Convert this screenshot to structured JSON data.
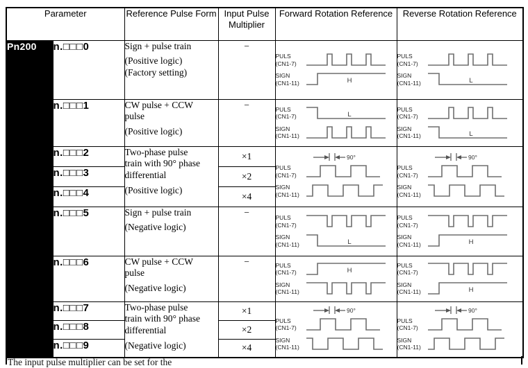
{
  "colors": {
    "border": "#000000",
    "param_bg": "#000000",
    "param_fg": "#ffffff",
    "waveform": "#6e6e6e",
    "level_label": "#333333",
    "annotation": "#555555"
  },
  "header": {
    "parameter": "Parameter",
    "form": "Reference Pulse Form",
    "multiplier": "Input Pulse Multiplier",
    "forward": "Forward Rotation Reference",
    "reverse": "Reverse Rotation Reference"
  },
  "parameter_group": "Pn200",
  "signals": {
    "puls": "PULS",
    "puls_pin": "(CN1-7)",
    "sign": "SIGN",
    "sign_pin": "(CN1-11)",
    "phase_label": "90°"
  },
  "rows": [
    {
      "code": "n.□□□0",
      "form_main": "Sign + pulse train",
      "form_notes": "(Positive logic)\n(Factory setting)",
      "multiplier": "−",
      "forward": {
        "puls_shape": "pulses-positive",
        "puls_label": "",
        "sign_shape": "step-up",
        "sign_label": "H",
        "phase_annotation": false
      },
      "reverse": {
        "puls_shape": "pulses-positive",
        "puls_label": "",
        "sign_shape": "step-down",
        "sign_label": "L",
        "phase_annotation": false
      }
    },
    {
      "code": "n.□□□1",
      "form_main": "CW pulse + CCW\npulse",
      "form_notes": "(Positive logic)",
      "multiplier": "−",
      "forward": {
        "puls_shape": "step-down",
        "puls_label": "L",
        "sign_shape": "pulses-positive",
        "sign_label": "",
        "phase_annotation": false
      },
      "reverse": {
        "puls_shape": "pulses-positive",
        "puls_label": "",
        "sign_shape": "step-down",
        "sign_label": "L",
        "phase_annotation": false
      }
    },
    {
      "code": "n.□□□2",
      "form_main": "Two-phase pulse\ntrain with 90° phase\ndifferential",
      "form_notes": "(Positive logic)",
      "multiplier": "×1",
      "forward": {
        "puls_shape": "square",
        "puls_label": "",
        "sign_shape": "quad-lag",
        "sign_label": "",
        "phase_annotation": true
      },
      "reverse": {
        "puls_shape": "square",
        "puls_label": "",
        "sign_shape": "quad-lead",
        "sign_label": "",
        "phase_annotation": true
      }
    },
    {
      "code": "n.□□□3",
      "multiplier": "×2"
    },
    {
      "code": "n.□□□4",
      "multiplier": "×4"
    },
    {
      "code": "n.□□□5",
      "form_main": "Sign + pulse train",
      "form_notes": "(Negative logic)",
      "multiplier": "−",
      "forward": {
        "puls_shape": "pulses-negative",
        "puls_label": "",
        "sign_shape": "step-down",
        "sign_label": "L",
        "phase_annotation": false
      },
      "reverse": {
        "puls_shape": "pulses-negative",
        "puls_label": "",
        "sign_shape": "step-up",
        "sign_label": "H",
        "phase_annotation": false
      }
    },
    {
      "code": "n.□□□6",
      "form_main": "CW pulse + CCW\npulse",
      "form_notes": "(Negative logic)",
      "multiplier": "−",
      "forward": {
        "puls_shape": "step-up",
        "puls_label": "H",
        "sign_shape": "pulses-negative",
        "sign_label": "",
        "phase_annotation": false
      },
      "reverse": {
        "puls_shape": "pulses-negative",
        "puls_label": "",
        "sign_shape": "step-up",
        "sign_label": "H",
        "phase_annotation": false
      }
    },
    {
      "code": "n.□□□7",
      "form_main": "Two-phase pulse\ntrain with 90° phase\ndifferential",
      "form_notes": "(Negative logic)",
      "multiplier": "×1",
      "forward": {
        "puls_shape": "square",
        "puls_label": "",
        "sign_shape": "quad-lead",
        "sign_label": "",
        "phase_annotation": true
      },
      "reverse": {
        "puls_shape": "square",
        "puls_label": "",
        "sign_shape": "quad-lag",
        "sign_label": "",
        "phase_annotation": true
      }
    },
    {
      "code": "n.□□□8",
      "multiplier": "×2"
    },
    {
      "code": "n.□□□9",
      "multiplier": "×4"
    }
  ],
  "footer_note": "The input pulse multiplier can be set for the"
}
